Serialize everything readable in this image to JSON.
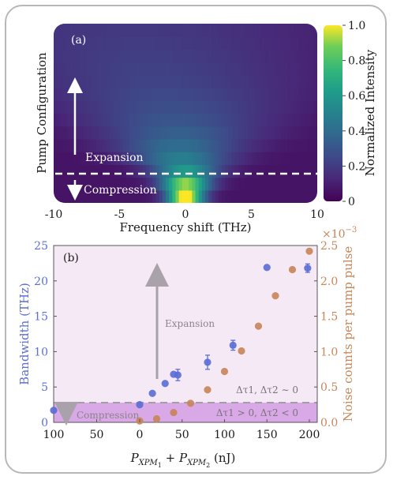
{
  "chart_data": [
    {
      "type": "heatmap",
      "panel_label": "(a)",
      "xlabel": "Frequency shift (THz)",
      "ylabel": "Pump Configuration",
      "xlim": [
        -10,
        10
      ],
      "x_ticks": [
        "-10",
        "-5",
        "0",
        "5",
        "10"
      ],
      "colorbar": {
        "label": "Normalized Intensity",
        "range": [
          0,
          1.0
        ],
        "ticks": [
          "0",
          "0.2",
          "0.4",
          "0.6",
          "0.8",
          "1.0"
        ]
      },
      "annotations": {
        "expansion": "Expansion",
        "compression": "Compression"
      },
      "rows": [
        {
          "center": 0.0,
          "width": 1.0,
          "peak": 1.0
        },
        {
          "center": 0.0,
          "width": 1.3,
          "peak": 0.85
        },
        {
          "center": 0.0,
          "width": 1.8,
          "peak": 0.55
        },
        {
          "center": -0.3,
          "width": 2.6,
          "peak": 0.42
        },
        {
          "center": -0.5,
          "width": 3.4,
          "peak": 0.34
        },
        {
          "center": -0.5,
          "width": 4.2,
          "peak": 0.28
        },
        {
          "center": -0.8,
          "width": 5.0,
          "peak": 0.24
        },
        {
          "center": -1.0,
          "width": 5.8,
          "peak": 0.21
        },
        {
          "center": -1.5,
          "width": 6.6,
          "peak": 0.19
        },
        {
          "center": -2.0,
          "width": 7.4,
          "peak": 0.17
        },
        {
          "center": -2.5,
          "width": 8.0,
          "peak": 0.16
        },
        {
          "center": -3.0,
          "width": 8.6,
          "peak": 0.15
        },
        {
          "center": -3.5,
          "width": 9.2,
          "peak": 0.14
        },
        {
          "center": -4.0,
          "width": 9.8,
          "peak": 0.13
        }
      ]
    },
    {
      "type": "scatter",
      "panel_label": "(b)",
      "xlabel": "P_XPM1 + P_XPM2 (nJ)",
      "x_ticks": [
        "100",
        "50",
        "0",
        "50",
        "100",
        "150",
        "200"
      ],
      "y_left": {
        "label": "Bandwidth (THz)",
        "ylim": [
          0,
          25
        ],
        "ticks": [
          "0",
          "5",
          "10",
          "15",
          "20",
          "25"
        ]
      },
      "y_right": {
        "label": "Noise counts per pump pulse",
        "exponent": "×10",
        "exponent_power": "−3",
        "ylim": [
          0,
          2.5
        ],
        "ticks": [
          "0.0",
          "0.5",
          "1.0",
          "1.5",
          "2.0",
          "2.5"
        ]
      },
      "colors": {
        "bandwidth": "#5b6fd6",
        "noise": "#c8865a",
        "expansion_bg": "#f6e9f6",
        "compression_bg": "#d9a8e6"
      },
      "threshold": 2.7,
      "annotations": {
        "expansion": "Expansion",
        "compression": "Compression",
        "upper_condition": "Δτ1, Δτ2 ∼ 0",
        "lower_condition": "Δτ1 > 0, Δτ2 < 0"
      },
      "series": [
        {
          "name": "Bandwidth",
          "axis": "left",
          "points": [
            {
              "x": -100,
              "y": 1.7,
              "err": 0
            },
            {
              "x": 0,
              "y": 2.5,
              "err": 0
            },
            {
              "x": 15,
              "y": 4.1,
              "err": 0
            },
            {
              "x": 30,
              "y": 5.5,
              "err": 0
            },
            {
              "x": 40,
              "y": 6.8,
              "err": 0
            },
            {
              "x": 45,
              "y": 6.7,
              "err": 0.8
            },
            {
              "x": 80,
              "y": 8.5,
              "err": 1.0
            },
            {
              "x": 110,
              "y": 10.9,
              "err": 0.7
            },
            {
              "x": 150,
              "y": 21.9,
              "err": 0
            },
            {
              "x": 198,
              "y": 21.8,
              "err": 0.6
            }
          ]
        },
        {
          "name": "Noise counts",
          "axis": "right",
          "points": [
            {
              "x": 0,
              "y": 0.02
            },
            {
              "x": 20,
              "y": 0.05
            },
            {
              "x": 40,
              "y": 0.14
            },
            {
              "x": 60,
              "y": 0.27
            },
            {
              "x": 80,
              "y": 0.46
            },
            {
              "x": 100,
              "y": 0.72
            },
            {
              "x": 120,
              "y": 1.01
            },
            {
              "x": 140,
              "y": 1.36
            },
            {
              "x": 160,
              "y": 1.79
            },
            {
              "x": 180,
              "y": 2.16
            },
            {
              "x": 200,
              "y": 2.42
            }
          ]
        }
      ]
    }
  ]
}
